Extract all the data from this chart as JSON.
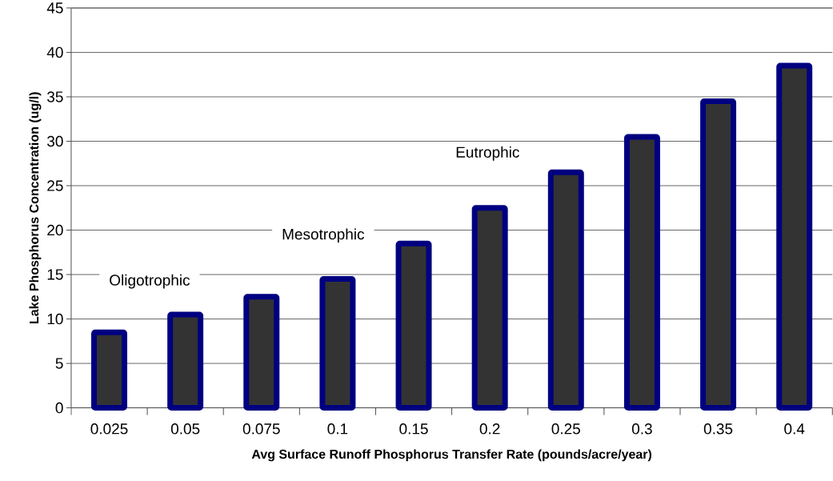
{
  "chart_data": {
    "type": "bar",
    "xlabel": "Avg Surface Runoff Phosphorus Transfer Rate (pounds/acre/year)",
    "ylabel": "Lake Phosphorus Concentration (ug/l)",
    "categories": [
      "0.025",
      "0.05",
      "0.075",
      "0.1",
      "0.15",
      "0.2",
      "0.25",
      "0.3",
      "0.35",
      "0.4"
    ],
    "values": [
      8.5,
      10.5,
      12.5,
      14.5,
      18.5,
      22.5,
      26.5,
      30.5,
      34.5,
      38.5
    ],
    "color": "#333333",
    "ylim": [
      0,
      45
    ],
    "yticks": [
      0,
      5,
      10,
      15,
      20,
      25,
      30,
      35,
      40,
      45
    ],
    "grid": "y",
    "annotations": [
      "Oligotrophic",
      "Mesotrophic",
      "Eutrophic"
    ]
  }
}
